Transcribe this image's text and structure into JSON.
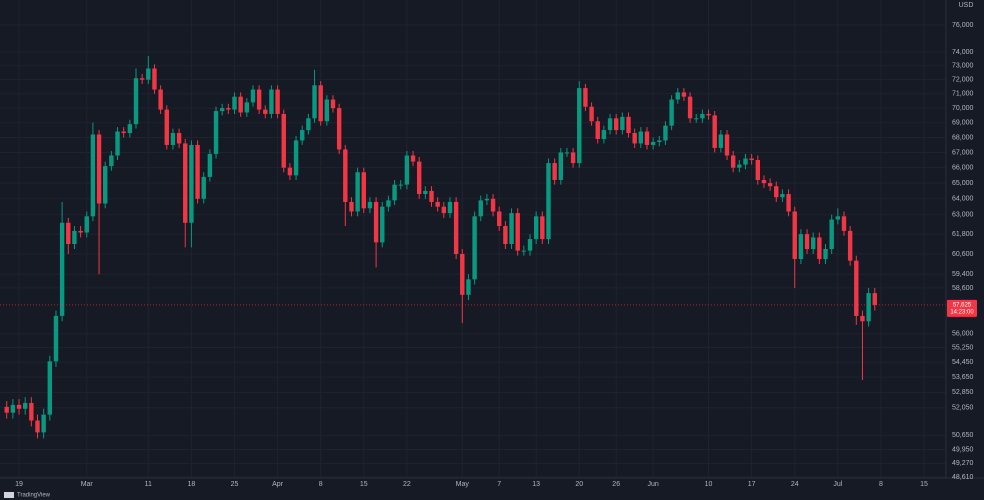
{
  "chart_data": {
    "type": "candlestick",
    "currency": "USD",
    "brand": "TradingView",
    "log_scale": true,
    "grid": true,
    "up_color": "#089981",
    "down_color": "#f23645",
    "xlim": [
      -3.09,
      150.57
    ],
    "ylim": [
      48560,
      77900
    ],
    "xticks": [
      {
        "value": 0,
        "label": "19"
      },
      {
        "value": 11,
        "label": "Mar"
      },
      {
        "value": 21,
        "label": "11"
      },
      {
        "value": 28,
        "label": "18"
      },
      {
        "value": 35,
        "label": "25"
      },
      {
        "value": 42,
        "label": "Apr"
      },
      {
        "value": 49,
        "label": "8"
      },
      {
        "value": 56,
        "label": "15"
      },
      {
        "value": 63,
        "label": "22"
      },
      {
        "value": 72,
        "label": "May"
      },
      {
        "value": 78,
        "label": "7"
      },
      {
        "value": 84,
        "label": "13"
      },
      {
        "value": 91,
        "label": "20"
      },
      {
        "value": 97,
        "label": "26"
      },
      {
        "value": 103,
        "label": "Jun"
      },
      {
        "value": 112,
        "label": "10"
      },
      {
        "value": 119,
        "label": "17"
      },
      {
        "value": 126,
        "label": "24"
      },
      {
        "value": 133,
        "label": "Jul"
      },
      {
        "value": 140,
        "label": "8"
      },
      {
        "value": 147,
        "label": "15"
      }
    ],
    "yticks": [
      {
        "value": 76000,
        "label": "76,000"
      },
      {
        "value": 74000,
        "label": "74,000"
      },
      {
        "value": 73000,
        "label": "73,000"
      },
      {
        "value": 72000,
        "label": "72,000"
      },
      {
        "value": 71000,
        "label": "71,000"
      },
      {
        "value": 70000,
        "label": "70,000"
      },
      {
        "value": 69000,
        "label": "69,000"
      },
      {
        "value": 68000,
        "label": "68,000"
      },
      {
        "value": 67000,
        "label": "67,000"
      },
      {
        "value": 66000,
        "label": "66,000"
      },
      {
        "value": 65000,
        "label": "65,000"
      },
      {
        "value": 64000,
        "label": "64,000"
      },
      {
        "value": 63000,
        "label": "63,000"
      },
      {
        "value": 61800,
        "label": "61,800"
      },
      {
        "value": 60600,
        "label": "60,600"
      },
      {
        "value": 59400,
        "label": "59,400"
      },
      {
        "value": 58600,
        "label": "58,600"
      },
      {
        "value": 56000,
        "label": "56,000"
      },
      {
        "value": 55250,
        "label": "55,250"
      },
      {
        "value": 54450,
        "label": "54,450"
      },
      {
        "value": 53650,
        "label": "53,650"
      },
      {
        "value": 52850,
        "label": "52,850"
      },
      {
        "value": 52050,
        "label": "52,050"
      },
      {
        "value": 50650,
        "label": "50,650"
      },
      {
        "value": 49950,
        "label": "49,950"
      },
      {
        "value": 49270,
        "label": "49,270"
      },
      {
        "value": 48610,
        "label": "48,610"
      }
    ],
    "last_price": {
      "value": 57625,
      "label": "57,625",
      "time": "14:23:00"
    },
    "x": [
      -2,
      -1,
      0,
      1,
      2,
      3,
      4,
      5,
      6,
      7,
      8,
      9,
      10,
      11,
      12,
      13,
      14,
      15,
      16,
      17,
      18,
      19,
      20,
      21,
      22,
      23,
      24,
      25,
      26,
      27,
      28,
      29,
      30,
      31,
      32,
      33,
      34,
      35,
      36,
      37,
      38,
      39,
      40,
      41,
      42,
      43,
      44,
      45,
      46,
      47,
      48,
      49,
      50,
      51,
      52,
      53,
      54,
      55,
      56,
      57,
      58,
      59,
      60,
      61,
      62,
      63,
      64,
      65,
      66,
      67,
      68,
      69,
      70,
      71,
      72,
      73,
      74,
      75,
      76,
      77,
      78,
      79,
      80,
      81,
      82,
      83,
      84,
      85,
      86,
      87,
      88,
      89,
      90,
      91,
      92,
      93,
      94,
      95,
      96,
      97,
      98,
      99,
      100,
      101,
      102,
      103,
      104,
      105,
      106,
      107,
      108,
      109,
      110,
      111,
      112,
      113,
      114,
      115,
      116,
      117,
      118,
      119,
      120,
      121,
      122,
      123,
      124,
      125,
      126,
      127,
      128,
      129,
      130,
      131,
      132,
      133,
      134,
      135,
      136,
      137,
      138,
      139
    ],
    "open": [
      52100,
      51800,
      52200,
      52000,
      52300,
      51400,
      50800,
      51700,
      54500,
      57000,
      62500,
      61200,
      62000,
      61900,
      62900,
      68200,
      63700,
      66100,
      66800,
      68400,
      68300,
      68900,
      72100,
      72000,
      72800,
      71300,
      69900,
      67500,
      68300,
      67600,
      62500,
      67500,
      64000,
      65400,
      66900,
      69800,
      70000,
      69900,
      70800,
      69700,
      70400,
      71300,
      69900,
      69600,
      71300,
      69600,
      66000,
      65500,
      67800,
      68500,
      69300,
      71600,
      69100,
      70600,
      70000,
      67200,
      63800,
      63200,
      65700,
      63400,
      63800,
      61300,
      63500,
      63900,
      64900,
      64900,
      66800,
      66400,
      64300,
      64500,
      63800,
      63500,
      63100,
      63800,
      60600,
      58200,
      59100,
      62900,
      63900,
      64000,
      63200,
      62300,
      61200,
      63100,
      60800,
      60800,
      61500,
      62900,
      61500,
      66300,
      65200,
      67000,
      67000,
      66300,
      71400,
      70100,
      69100,
      67900,
      68500,
      69300,
      68500,
      69400,
      68300,
      67600,
      68400,
      67500,
      67700,
      67800,
      68800,
      70600,
      71100,
      70800,
      69300,
      69300,
      69600,
      69500,
      67300,
      68200,
      66800,
      66000,
      66200,
      66600,
      66500,
      65200,
      65000,
      64800,
      64100,
      64300,
      63200,
      60300,
      61800,
      60900,
      61600,
      60300,
      60900,
      62700,
      62900,
      62000,
      60200,
      57000,
      56700,
      58300
    ],
    "high": [
      52400,
      52500,
      52500,
      52600,
      52600,
      51700,
      52000,
      54800,
      57300,
      63800,
      62800,
      62300,
      62300,
      63200,
      69000,
      68500,
      66400,
      67100,
      68700,
      68700,
      69200,
      72800,
      72400,
      73700,
      73100,
      71600,
      70200,
      68600,
      68600,
      67900,
      67800,
      67800,
      65700,
      67200,
      70100,
      70300,
      70300,
      71100,
      71100,
      70700,
      71600,
      71600,
      70200,
      71600,
      71600,
      69900,
      66300,
      68100,
      68800,
      69600,
      72700,
      71900,
      70900,
      70900,
      70300,
      67500,
      64100,
      66000,
      66000,
      64100,
      64100,
      63800,
      64200,
      65200,
      65200,
      67100,
      67100,
      66700,
      64800,
      64800,
      64100,
      63800,
      64100,
      64100,
      60900,
      59400,
      63200,
      64200,
      64300,
      64300,
      63500,
      62600,
      63400,
      63400,
      61100,
      61800,
      63200,
      63200,
      66600,
      66600,
      67300,
      67300,
      67300,
      71900,
      71700,
      70400,
      69400,
      68800,
      69600,
      69600,
      69700,
      69700,
      68600,
      68700,
      68700,
      68000,
      68100,
      69100,
      70900,
      71400,
      71400,
      71100,
      69600,
      69900,
      69900,
      69800,
      68500,
      68500,
      67100,
      66500,
      66900,
      66900,
      66800,
      65500,
      65300,
      65100,
      64600,
      64600,
      63500,
      62100,
      62100,
      61900,
      61900,
      61200,
      63000,
      63400,
      63200,
      62300,
      60500,
      57300,
      58600,
      58600
    ],
    "low": [
      51500,
      51500,
      51700,
      51700,
      51100,
      50500,
      50500,
      51400,
      54200,
      56700,
      60600,
      60900,
      61600,
      61600,
      62600,
      59400,
      63400,
      65800,
      66500,
      68000,
      68000,
      68600,
      71700,
      71700,
      71000,
      69600,
      67200,
      67200,
      67300,
      61000,
      61000,
      63700,
      63700,
      65100,
      66600,
      69500,
      69600,
      69600,
      69400,
      69400,
      70100,
      69600,
      69300,
      69300,
      69300,
      65700,
      65200,
      65200,
      67500,
      68200,
      69000,
      68800,
      68800,
      69700,
      66900,
      62300,
      62900,
      62900,
      63100,
      63100,
      59800,
      61000,
      63200,
      63600,
      64600,
      64600,
      66100,
      64000,
      64000,
      63500,
      63200,
      62800,
      62800,
      60300,
      56600,
      57900,
      58800,
      62600,
      63600,
      62900,
      62000,
      60900,
      60900,
      60500,
      60500,
      60500,
      61200,
      61200,
      61200,
      64900,
      64900,
      66700,
      66000,
      66000,
      69800,
      68800,
      67600,
      67600,
      68200,
      68200,
      68200,
      68000,
      67300,
      67300,
      67200,
      67200,
      67400,
      67500,
      68500,
      70300,
      70500,
      69000,
      69000,
      69000,
      69200,
      67000,
      67000,
      66500,
      65700,
      65700,
      65900,
      66200,
      64900,
      64700,
      64500,
      63800,
      63800,
      62900,
      58600,
      60000,
      60600,
      60600,
      60000,
      60000,
      60600,
      62400,
      61700,
      59900,
      56500,
      53500,
      56400,
      57300
    ],
    "close": [
      51800,
      52200,
      52000,
      52300,
      51400,
      50800,
      51700,
      54500,
      57000,
      62500,
      61200,
      62000,
      61900,
      62900,
      68200,
      63700,
      66100,
      66800,
      68400,
      68300,
      68900,
      72100,
      72000,
      72800,
      71300,
      69900,
      67500,
      68300,
      67600,
      62500,
      67500,
      64000,
      65400,
      66900,
      69800,
      70000,
      69900,
      70800,
      69700,
      70400,
      71300,
      69900,
      69600,
      71300,
      69600,
      66000,
      65500,
      67800,
      68500,
      69300,
      71600,
      69100,
      70600,
      70000,
      67200,
      63800,
      63200,
      65700,
      63400,
      63800,
      61300,
      63500,
      63900,
      64900,
      64900,
      66800,
      66400,
      64300,
      64500,
      63800,
      63500,
      63100,
      63800,
      60600,
      58200,
      59100,
      62900,
      63900,
      64000,
      63200,
      62300,
      61200,
      63100,
      60800,
      60800,
      61500,
      62900,
      61500,
      66300,
      65200,
      67000,
      67000,
      66300,
      71400,
      70100,
      69100,
      67900,
      68500,
      69300,
      68500,
      69400,
      68300,
      67600,
      68400,
      67500,
      67700,
      67800,
      68800,
      70600,
      71100,
      70800,
      69300,
      69300,
      69600,
      69500,
      67300,
      68200,
      66800,
      66000,
      66200,
      66600,
      66500,
      65200,
      65000,
      64800,
      64100,
      64300,
      63200,
      60300,
      61800,
      60900,
      61600,
      60300,
      60900,
      62700,
      62900,
      62000,
      60200,
      57000,
      56700,
      58300,
      57625
    ]
  }
}
